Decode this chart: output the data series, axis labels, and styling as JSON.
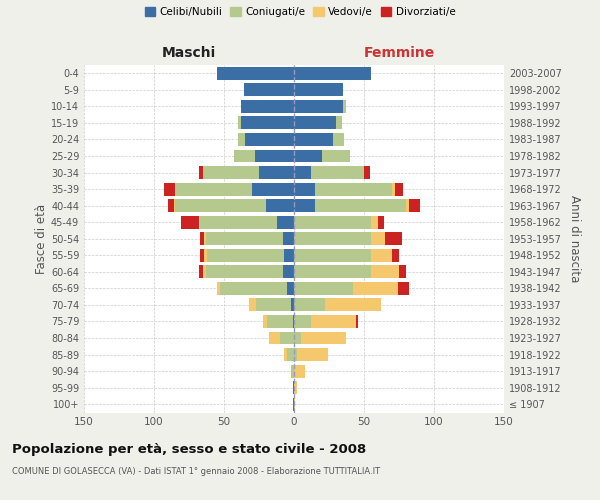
{
  "age_groups": [
    "100+",
    "95-99",
    "90-94",
    "85-89",
    "80-84",
    "75-79",
    "70-74",
    "65-69",
    "60-64",
    "55-59",
    "50-54",
    "45-49",
    "40-44",
    "35-39",
    "30-34",
    "25-29",
    "20-24",
    "15-19",
    "10-14",
    "5-9",
    "0-4"
  ],
  "birth_years": [
    "≤ 1907",
    "1908-1912",
    "1913-1917",
    "1918-1922",
    "1923-1927",
    "1928-1932",
    "1933-1937",
    "1938-1942",
    "1943-1947",
    "1948-1952",
    "1953-1957",
    "1958-1962",
    "1963-1967",
    "1968-1972",
    "1973-1977",
    "1978-1982",
    "1983-1987",
    "1988-1992",
    "1993-1997",
    "1998-2002",
    "2003-2007"
  ],
  "colors": {
    "celibi": "#3a6ea5",
    "coniugati": "#b5c98e",
    "vedovi": "#f5c86e",
    "divorziati": "#cc2222"
  },
  "males": {
    "celibi": [
      1,
      1,
      0,
      0,
      0,
      1,
      2,
      5,
      8,
      7,
      8,
      12,
      20,
      30,
      25,
      28,
      35,
      38,
      38,
      36,
      55
    ],
    "coniugati": [
      0,
      0,
      2,
      5,
      10,
      18,
      25,
      48,
      55,
      55,
      55,
      55,
      65,
      55,
      40,
      15,
      5,
      2,
      0,
      0,
      0
    ],
    "vedovi": [
      0,
      0,
      0,
      2,
      8,
      3,
      5,
      2,
      2,
      2,
      1,
      1,
      1,
      0,
      0,
      0,
      0,
      0,
      0,
      0,
      0
    ],
    "divorziati": [
      0,
      0,
      0,
      0,
      0,
      0,
      0,
      0,
      3,
      3,
      3,
      13,
      4,
      8,
      3,
      0,
      0,
      0,
      0,
      0,
      0
    ]
  },
  "females": {
    "celibi": [
      0,
      0,
      0,
      0,
      0,
      0,
      0,
      0,
      0,
      0,
      0,
      0,
      15,
      15,
      12,
      20,
      28,
      30,
      35,
      35,
      55
    ],
    "coniugati": [
      0,
      0,
      0,
      2,
      5,
      12,
      22,
      42,
      55,
      55,
      55,
      55,
      65,
      55,
      38,
      20,
      8,
      4,
      2,
      0,
      0
    ],
    "vedovi": [
      1,
      2,
      8,
      22,
      32,
      32,
      40,
      32,
      20,
      15,
      10,
      5,
      2,
      2,
      0,
      0,
      0,
      0,
      0,
      0,
      0
    ],
    "divorziati": [
      0,
      0,
      0,
      0,
      0,
      2,
      0,
      8,
      5,
      5,
      12,
      4,
      8,
      6,
      4,
      0,
      0,
      0,
      0,
      0,
      0
    ]
  },
  "title": "Popolazione per età, sesso e stato civile - 2008",
  "subtitle": "COMUNE DI GOLASECCA (VA) - Dati ISTAT 1° gennaio 2008 - Elaborazione TUTTITALIA.IT",
  "xlabel_left": "Maschi",
  "xlabel_right": "Femmine",
  "ylabel_left": "Fasce di età",
  "ylabel_right": "Anni di nascita",
  "xlim": 150,
  "legend_labels": [
    "Celibi/Nubili",
    "Coniugati/e",
    "Vedovi/e",
    "Divorziati/e"
  ],
  "bg_color": "#f0f0eb",
  "plot_bg": "#ffffff"
}
